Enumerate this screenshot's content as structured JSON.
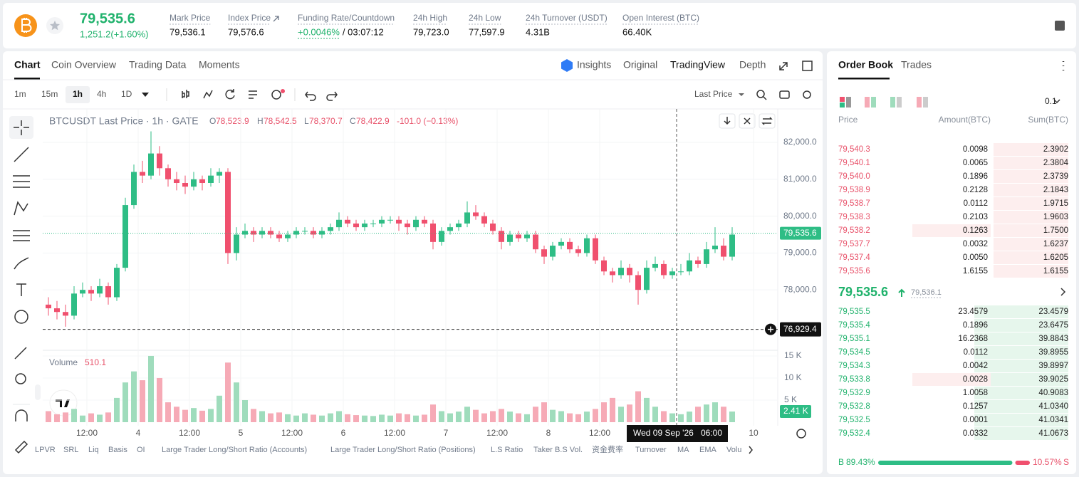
{
  "header": {
    "price": "79,535.6",
    "change": "1,251.2(+1.60%)",
    "stats": [
      {
        "label": "Mark Price",
        "value": "79,536.1"
      },
      {
        "label": "Index Price",
        "value": "79,576.6"
      },
      {
        "label": "Funding Rate/Countdown",
        "value": "+0.0046%",
        "countdown": "/ 03:07:12"
      },
      {
        "label": "24h High",
        "value": "79,723.0"
      },
      {
        "label": "24h Low",
        "value": "77,597.9"
      },
      {
        "label": "24h Turnover (USDT)",
        "value": "4.31B"
      },
      {
        "label": "Open Interest (BTC)",
        "value": "66.40K"
      }
    ]
  },
  "chart_tabs": [
    "Chart",
    "Coin Overview",
    "Trading Data",
    "Moments"
  ],
  "view_tabs": [
    "Insights",
    "Original",
    "TradingView",
    "Depth"
  ],
  "intervals": [
    "1m",
    "15m",
    "1h",
    "4h",
    "1D"
  ],
  "price_type": "Last Price",
  "legend": {
    "symbol": "BTCUSDT Last Price · 1h · GATE",
    "ohlc": [
      {
        "key": "O",
        "value": "78,523.9"
      },
      {
        "key": "H",
        "value": "78,542.5"
      },
      {
        "key": "L",
        "value": "78,370.7"
      },
      {
        "key": "C",
        "value": "78,422.9"
      }
    ],
    "change": "-101.0 (−0.13%)"
  },
  "chart_data": {
    "type": "candlestick",
    "xlim": [
      0,
      172
    ],
    "xticks": [
      {
        "value": 10,
        "label": "12:00"
      },
      {
        "value": 22,
        "label": "4"
      },
      {
        "value": 34,
        "label": "12:00"
      },
      {
        "value": 46,
        "label": "5"
      },
      {
        "value": 58,
        "label": "12:00"
      },
      {
        "value": 70,
        "label": "6"
      },
      {
        "value": 82,
        "label": "12:00"
      },
      {
        "value": 94,
        "label": "7"
      },
      {
        "value": 106,
        "label": "12:00"
      },
      {
        "value": 118,
        "label": "8"
      },
      {
        "value": 130,
        "label": "12:00"
      },
      {
        "value": 166,
        "label": "10"
      }
    ],
    "ylim": [
      76400,
      82870
    ],
    "yticks": [
      {
        "value": 78000,
        "label": "78,000.0"
      },
      {
        "value": 79000,
        "label": "79,000.0"
      },
      {
        "value": 80000,
        "label": "80,000.0"
      },
      {
        "value": 81000,
        "label": "81,000.0"
      },
      {
        "value": 82000,
        "label": "82,000.0"
      }
    ],
    "grid": true,
    "up_color": "#2ebd85",
    "down_color": "#f0506e",
    "candles": [
      [
        77600,
        77800,
        77300,
        77500
      ],
      [
        77500,
        77700,
        77200,
        77400
      ],
      [
        77400,
        77600,
        77000,
        77300
      ],
      [
        77300,
        78100,
        77200,
        77900
      ],
      [
        77900,
        78200,
        77800,
        78000
      ],
      [
        78000,
        78100,
        77700,
        77900
      ],
      [
        77900,
        78300,
        77800,
        78100
      ],
      [
        78100,
        78200,
        77600,
        77800
      ],
      [
        77800,
        78700,
        77700,
        78600
      ],
      [
        78600,
        80500,
        78500,
        80300
      ],
      [
        80300,
        81400,
        80200,
        81200
      ],
      [
        81200,
        81500,
        80900,
        81100
      ],
      [
        81100,
        82300,
        81000,
        81700
      ],
      [
        81700,
        81900,
        81100,
        81300
      ],
      [
        81300,
        81400,
        80800,
        81000
      ],
      [
        81000,
        81200,
        80700,
        80900
      ],
      [
        80900,
        81100,
        80600,
        80800
      ],
      [
        80800,
        81200,
        80700,
        81000
      ],
      [
        81000,
        81100,
        80700,
        80900
      ],
      [
        80900,
        81300,
        80800,
        81100
      ],
      [
        81100,
        81300,
        80900,
        81200
      ],
      [
        81200,
        81300,
        78700,
        79000
      ],
      [
        79000,
        79700,
        78800,
        79500
      ],
      [
        79500,
        79800,
        79400,
        79600
      ],
      [
        79600,
        79700,
        79300,
        79500
      ],
      [
        79500,
        79700,
        79400,
        79600
      ],
      [
        79600,
        79700,
        79400,
        79500
      ],
      [
        79500,
        79600,
        79300,
        79400
      ],
      [
        79400,
        79600,
        79300,
        79500
      ],
      [
        79500,
        79700,
        79400,
        79600
      ],
      [
        79600,
        79700,
        79500,
        79600
      ],
      [
        79600,
        79700,
        79400,
        79500
      ],
      [
        79500,
        79700,
        79400,
        79600
      ],
      [
        79600,
        79800,
        79500,
        79700
      ],
      [
        79700,
        80100,
        79600,
        79900
      ],
      [
        79900,
        80000,
        79700,
        79800
      ],
      [
        79800,
        79900,
        79600,
        79700
      ],
      [
        79700,
        79900,
        79600,
        79800
      ],
      [
        79800,
        79900,
        79700,
        79800
      ],
      [
        79800,
        80000,
        79700,
        79900
      ],
      [
        79900,
        80000,
        79800,
        79900
      ],
      [
        79900,
        80000,
        79600,
        79800
      ],
      [
        79800,
        79900,
        79500,
        79700
      ],
      [
        79700,
        80000,
        79600,
        79900
      ],
      [
        79900,
        80000,
        79700,
        79800
      ],
      [
        79800,
        79900,
        79100,
        79300
      ],
      [
        79300,
        79700,
        79200,
        79600
      ],
      [
        79600,
        79800,
        79500,
        79700
      ],
      [
        79700,
        79900,
        79600,
        79800
      ],
      [
        79800,
        80400,
        79700,
        80100
      ],
      [
        80100,
        80300,
        79900,
        80000
      ],
      [
        80000,
        80100,
        79700,
        79800
      ],
      [
        79800,
        79900,
        79500,
        79600
      ],
      [
        79600,
        79700,
        79100,
        79300
      ],
      [
        79300,
        79600,
        79200,
        79500
      ],
      [
        79500,
        79600,
        79300,
        79400
      ],
      [
        79400,
        79600,
        79300,
        79500
      ],
      [
        79500,
        79600,
        79000,
        79100
      ],
      [
        79100,
        79200,
        78700,
        78900
      ],
      [
        78900,
        79300,
        78800,
        79200
      ],
      [
        79200,
        79400,
        79100,
        79300
      ],
      [
        79300,
        79400,
        79000,
        79100
      ],
      [
        79100,
        79200,
        78900,
        79000
      ],
      [
        79000,
        79500,
        78900,
        79400
      ],
      [
        79400,
        79500,
        78700,
        78800
      ],
      [
        78800,
        78900,
        78400,
        78500
      ],
      [
        78500,
        78600,
        78200,
        78400
      ],
      [
        78400,
        78800,
        78300,
        78600
      ],
      [
        78600,
        78700,
        78200,
        78400
      ],
      [
        78400,
        78500,
        77600,
        78000
      ],
      [
        78000,
        78800,
        77900,
        78600
      ],
      [
        78600,
        78900,
        78500,
        78700
      ],
      [
        78700,
        78800,
        78300,
        78400
      ],
      [
        78400,
        78600,
        78300,
        78500
      ],
      [
        78500,
        78700,
        78400,
        78500
      ],
      [
        78500,
        79000,
        78400,
        78800
      ],
      [
        78800,
        78900,
        78600,
        78700
      ],
      [
        78700,
        79300,
        78600,
        79100
      ],
      [
        79100,
        79700,
        79000,
        79200
      ],
      [
        79200,
        79400,
        78800,
        78900
      ],
      [
        78900,
        79700,
        78800,
        79500
      ]
    ],
    "last_price": {
      "value": 79535.6,
      "label": "79,535.6"
    },
    "crosshair": {
      "x": 148,
      "value": 76929.4,
      "label": "76,929.4",
      "date": "Wed 09 Sep '26",
      "time": "06:00"
    },
    "volume": {
      "title": "Volume",
      "last": "510.1",
      "ylim": [
        0,
        15800
      ],
      "yticks": [
        {
          "value": 5000,
          "label": "5 K"
        },
        {
          "value": 10000,
          "label": "10 K"
        },
        {
          "value": 15000,
          "label": "15 K"
        }
      ],
      "up_color": "#9fdcbc",
      "down_color": "#f6aab6",
      "values": [
        2500,
        1800,
        2200,
        3000,
        1500,
        2000,
        1700,
        2200,
        5500,
        9000,
        11500,
        9500,
        15000,
        10000,
        4500,
        3500,
        2800,
        3200,
        2600,
        3000,
        6000,
        13500,
        9000,
        5000,
        3000,
        2500,
        2000,
        2200,
        1800,
        1500,
        2000,
        1700,
        1500,
        2000,
        2500,
        1800,
        1600,
        1500,
        1400,
        1700,
        1500,
        2000,
        1800,
        1500,
        1700,
        4000,
        2500,
        2000,
        2400,
        3500,
        2800,
        2000,
        2500,
        3000,
        2400,
        2000,
        1800,
        3500,
        4500,
        2800,
        2500,
        2000,
        1800,
        2400,
        3000,
        4500,
        5500,
        3500,
        4000,
        7000,
        5500,
        3500,
        2500,
        2000,
        1800,
        2400,
        3500,
        4000,
        4500,
        3500,
        2410
      ],
      "current": {
        "value": 2410,
        "label": "2.41 K"
      }
    }
  },
  "indicators": [
    "LPVR",
    "SRL",
    "Liq",
    "Basis",
    "OI",
    "Large Trader Long/Short Ratio (Accounts)",
    "Large Trader Long/Short Ratio (Positions)",
    "L.S Ratio",
    "Taker B.S Vol.",
    "资金费率",
    "Turnover",
    "MA",
    "EMA",
    "Volu"
  ],
  "order_book": {
    "tabs": [
      "Order Book",
      "Trades"
    ],
    "step": "0.1",
    "headers": [
      "Price",
      "Amount(BTC)",
      "Sum(BTC)"
    ],
    "asks": [
      [
        "79,540.3",
        "0.0098",
        "2.3902"
      ],
      [
        "79,540.1",
        "0.0065",
        "2.3804"
      ],
      [
        "79,540.0",
        "0.1896",
        "2.3739"
      ],
      [
        "79,538.9",
        "0.2128",
        "2.1843"
      ],
      [
        "79,538.7",
        "0.0112",
        "1.9715"
      ],
      [
        "79,538.3",
        "0.2103",
        "1.9603"
      ],
      [
        "79,538.2",
        "0.1263",
        "1.7500"
      ],
      [
        "79,537.7",
        "0.0032",
        "1.6237"
      ],
      [
        "79,537.4",
        "0.0050",
        "1.6205"
      ],
      [
        "79,535.6",
        "1.6155",
        "1.6155"
      ]
    ],
    "last": "79,535.6",
    "mark": "79,536.1",
    "bids": [
      [
        "79,535.5",
        "23.4579",
        "23.4579"
      ],
      [
        "79,535.4",
        "0.1896",
        "23.6475"
      ],
      [
        "79,535.1",
        "16.2368",
        "39.8843"
      ],
      [
        "79,534.5",
        "0.0112",
        "39.8955"
      ],
      [
        "79,534.3",
        "0.0042",
        "39.8997"
      ],
      [
        "79,533.8",
        "0.0028",
        "39.9025"
      ],
      [
        "79,532.9",
        "1.0058",
        "40.9083"
      ],
      [
        "79,532.8",
        "0.1257",
        "41.0340"
      ],
      [
        "79,532.5",
        "0.0001",
        "41.0341"
      ],
      [
        "79,532.4",
        "0.0332",
        "41.0673"
      ]
    ],
    "ratio": {
      "buy_key": "B",
      "sell_key": "S",
      "buy": {
        "value": 89.43,
        "label": "89.43%"
      },
      "sell": {
        "value": 10.57,
        "label": "10.57%"
      }
    }
  }
}
